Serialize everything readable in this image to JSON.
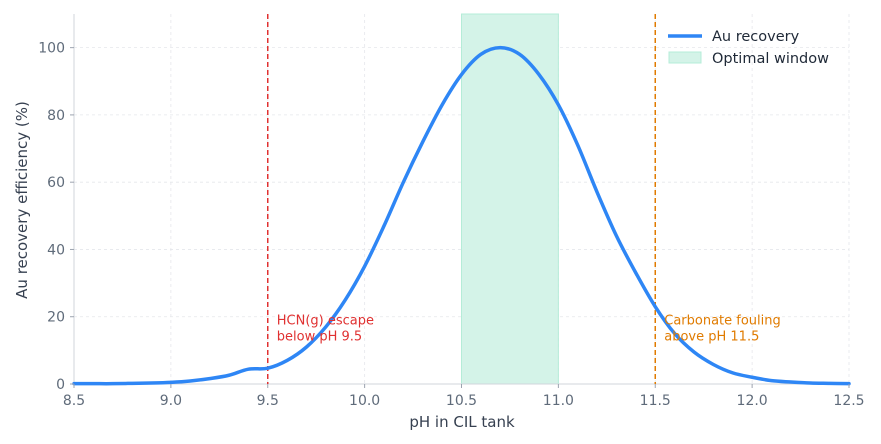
{
  "chart_data": {
    "type": "line",
    "xlabel": "pH in CIL tank",
    "ylabel": "Au recovery efficiency (%)",
    "xlim": [
      8.5,
      12.5
    ],
    "ylim": [
      0,
      110
    ],
    "xticks": [
      "8.5",
      "9.0",
      "9.5",
      "10.0",
      "10.5",
      "11.0",
      "11.5",
      "12.0",
      "12.5"
    ],
    "yticks": [
      "0",
      "20",
      "40",
      "60",
      "80",
      "100"
    ],
    "grid": true,
    "legend_position": "top-right",
    "series": [
      {
        "name": "Au recovery",
        "color": "#2e86f5",
        "x": [
          8.5,
          8.6,
          8.7,
          8.8,
          8.9,
          9.0,
          9.1,
          9.2,
          9.3,
          9.4,
          9.5,
          9.6,
          9.7,
          9.8,
          9.9,
          10.0,
          10.1,
          10.2,
          10.3,
          10.4,
          10.5,
          10.6,
          10.7,
          10.8,
          10.9,
          11.0,
          11.1,
          11.2,
          11.3,
          11.4,
          11.5,
          11.6,
          11.7,
          11.8,
          11.9,
          12.0,
          12.1,
          12.2,
          12.3,
          12.4,
          12.5
        ],
        "y": [
          0.1,
          0.1,
          0.1,
          0.2,
          0.3,
          0.5,
          0.9,
          1.6,
          2.6,
          4.4,
          4.7,
          7.0,
          11.0,
          17.0,
          25.0,
          35.0,
          47.0,
          60.0,
          72.0,
          83.0,
          92.0,
          98.0,
          100.0,
          98.0,
          92.0,
          83.0,
          71.0,
          57.0,
          44.0,
          33.0,
          23.0,
          15.0,
          9.5,
          5.8,
          3.3,
          2.0,
          1.0,
          0.6,
          0.3,
          0.2,
          0.1
        ]
      }
    ],
    "optimal_window": {
      "name": "Optimal window",
      "x_range": [
        10.5,
        11.0
      ],
      "color": "#b5ecd8"
    },
    "reference_lines": [
      {
        "x": 9.5,
        "color": "#e03131",
        "label_line1": "HCN(g) escape",
        "label_line2": "below pH 9.5",
        "label_y": 20
      },
      {
        "x": 11.5,
        "color": "#e07b00",
        "label_line1": "Carbonate fouling",
        "label_line2": "above pH 11.5",
        "label_y": 20
      }
    ]
  }
}
